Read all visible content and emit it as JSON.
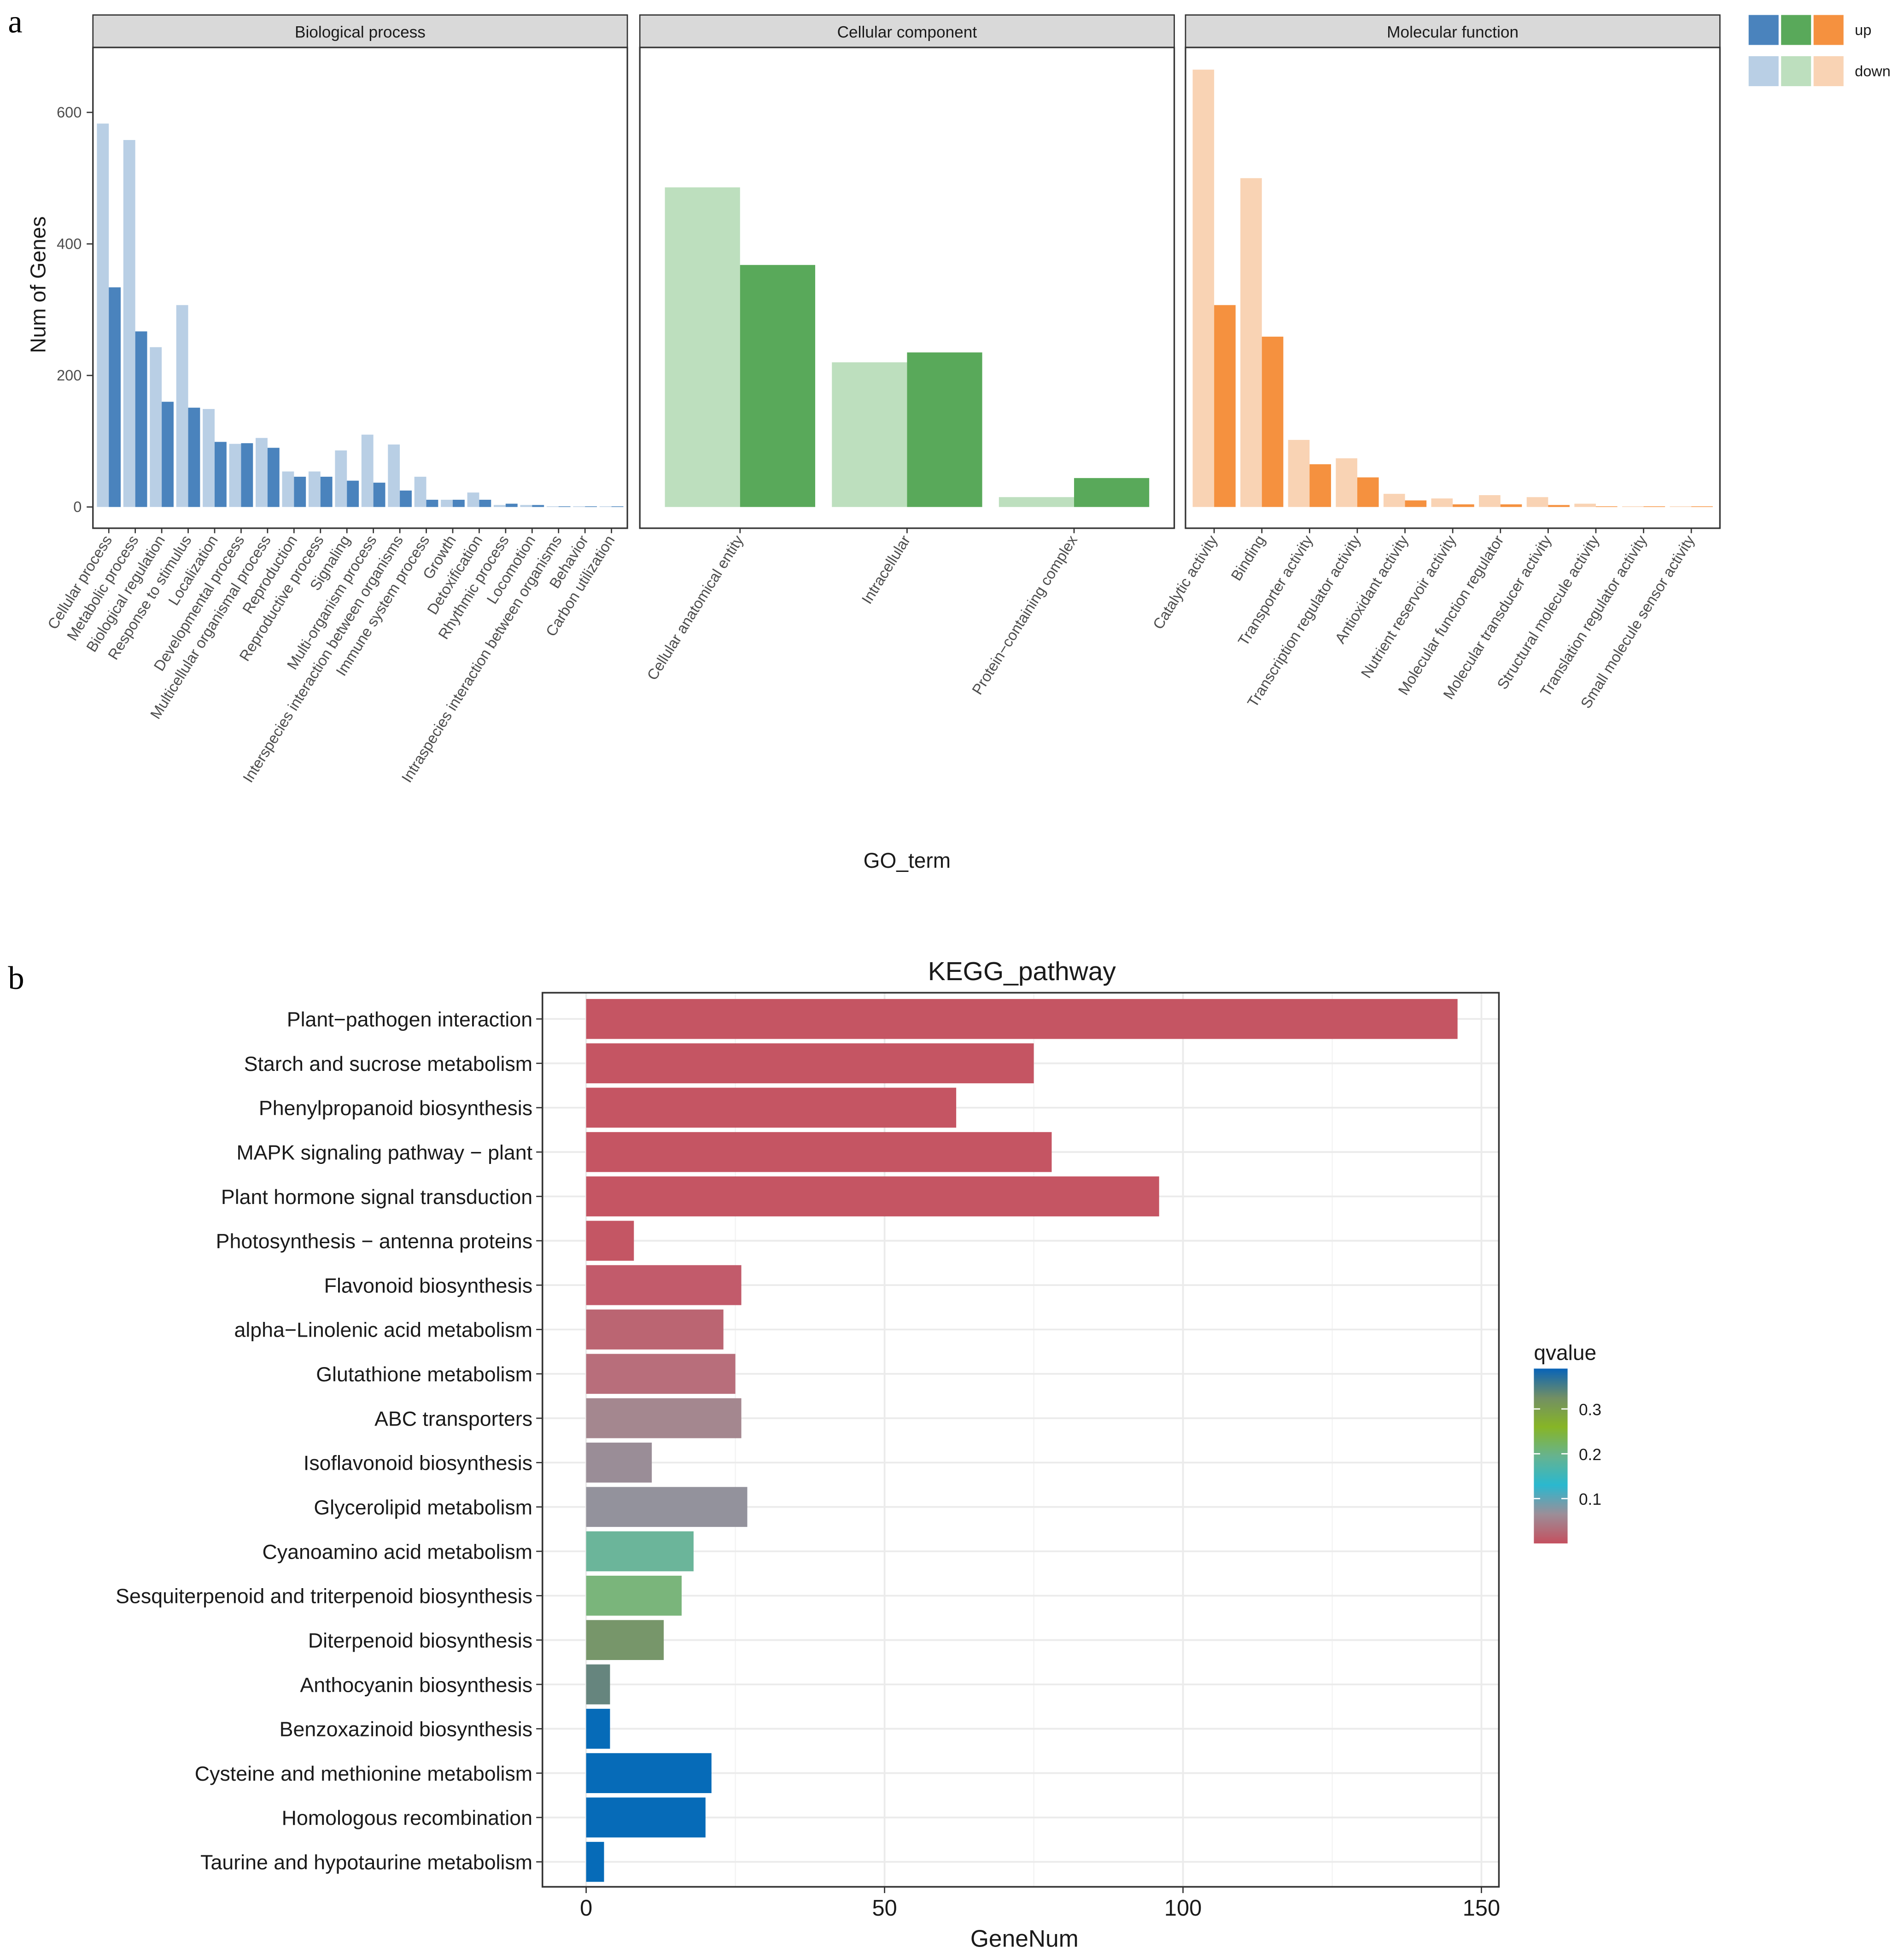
{
  "chart_data": [
    {
      "type": "bar",
      "panel_letter": "a",
      "ylabel": "Num of Genes",
      "xlabel": "GO_term",
      "ylim": [
        0,
        665
      ],
      "yticks": [
        0,
        200,
        400,
        600
      ],
      "legend": {
        "placement": "top-right",
        "entries": [
          "up",
          "down"
        ]
      },
      "facets": [
        {
          "title": "Biological process",
          "colors": {
            "up": "#4a83bd",
            "down": "#b9cfe5"
          },
          "categories": [
            "Cellular process",
            "Metabolic process",
            "Biological regulation",
            "Response to stimulus",
            "Localization",
            "Developmental process",
            "Multicellular organismal process",
            "Reproduction",
            "Reproductive process",
            "Signaling",
            "Multi-organism process",
            "Interspecies interaction between organisms",
            "Immune system process",
            "Growth",
            "Detoxification",
            "Rhythmic process",
            "Locomotion",
            "Intraspecies interaction between organisms",
            "Behavior",
            "Carbon utilization"
          ],
          "series": [
            {
              "name": "down",
              "values": [
                583,
                558,
                243,
                307,
                149,
                96,
                105,
                54,
                54,
                86,
                110,
                95,
                46,
                11,
                22,
                3,
                3,
                1,
                1,
                1
              ]
            },
            {
              "name": "up",
              "values": [
                334,
                267,
                160,
                151,
                99,
                97,
                90,
                46,
                46,
                40,
                37,
                25,
                11,
                11,
                11,
                5,
                3,
                1,
                1,
                1
              ]
            }
          ]
        },
        {
          "title": "Cellular component",
          "colors": {
            "up": "#59a95a",
            "down": "#bddfbe"
          },
          "categories": [
            "Cellular anatomical entity",
            "Intracellular",
            "Protein−containing complex"
          ],
          "series": [
            {
              "name": "down",
              "values": [
                486,
                220,
                15
              ]
            },
            {
              "name": "up",
              "values": [
                368,
                235,
                44
              ]
            }
          ]
        },
        {
          "title": "Molecular function",
          "colors": {
            "up": "#f5913f",
            "down": "#f9d3b4"
          },
          "categories": [
            "Catalytic activity",
            "Binding",
            "Transporter activity",
            "Transcription regulator activity",
            "Antioxidant activity",
            "Nutrient reservoir activity",
            "Molecular function regulator",
            "Molecular transducer activity",
            "Structural molecule activity",
            "Translation regulator activity",
            "Small molecule sensor activity"
          ],
          "series": [
            {
              "name": "down",
              "values": [
                665,
                500,
                102,
                74,
                20,
                13,
                18,
                15,
                5,
                1,
                1
              ]
            },
            {
              "name": "up",
              "values": [
                307,
                259,
                65,
                45,
                10,
                4,
                4,
                3,
                1,
                1,
                1
              ]
            }
          ]
        }
      ]
    },
    {
      "type": "bar",
      "orientation": "horizontal",
      "panel_letter": "b",
      "title": "KEGG_pathway",
      "xlabel": "GeneNum",
      "xlim": [
        0,
        153
      ],
      "xticks": [
        0,
        50,
        100,
        150
      ],
      "categories": [
        "Plant−pathogen interaction",
        "Starch and sucrose metabolism",
        "Phenylpropanoid biosynthesis",
        "MAPK signaling pathway − plant",
        "Plant hormone signal transduction",
        "Photosynthesis − antenna proteins",
        "Flavonoid biosynthesis",
        "alpha−Linolenic acid metabolism",
        "Glutathione metabolism",
        "ABC transporters",
        "Isoflavonoid biosynthesis",
        "Glycerolipid metabolism",
        "Cyanoamino acid metabolism",
        "Sesquiterpenoid and triterpenoid biosynthesis",
        "Diterpenoid biosynthesis",
        "Anthocyanin biosynthesis",
        "Benzoxazinoid biosynthesis",
        "Cysteine and methionine metabolism",
        "Homologous recombination",
        "Taurine and hypotaurine metabolism"
      ],
      "values": [
        146,
        75,
        62,
        78,
        96,
        8,
        26,
        23,
        25,
        26,
        11,
        27,
        18,
        16,
        13,
        4,
        4,
        21,
        20,
        3
      ],
      "qvalue": [
        0.0,
        0.0,
        0.0,
        0.0,
        0.0,
        0.0,
        0.01,
        0.02,
        0.03,
        0.06,
        0.07,
        0.08,
        0.17,
        0.22,
        0.28,
        0.34,
        0.39,
        0.39,
        0.39,
        0.39
      ],
      "bar_colors": [
        "#c55563",
        "#c55563",
        "#c55563",
        "#c55563",
        "#c55563",
        "#c45664",
        "#c25b6b",
        "#bb6572",
        "#b86e7b",
        "#a4878f",
        "#9a8d97",
        "#93929c",
        "#6bb59a",
        "#7ab57b",
        "#77966a",
        "#66857e",
        "#066bb8",
        "#066bb8",
        "#066bb8",
        "#066bb8"
      ],
      "legend": {
        "title": "qvalue",
        "ticks": [
          "0.1",
          "0.2",
          "0.3"
        ],
        "range": [
          0,
          0.39
        ],
        "gradient": [
          "#c4505f",
          "#9c8e98",
          "#2ab8cf",
          "#66b38f",
          "#87b526",
          "#728f64",
          "#0863b8"
        ],
        "placement": "right"
      }
    }
  ]
}
